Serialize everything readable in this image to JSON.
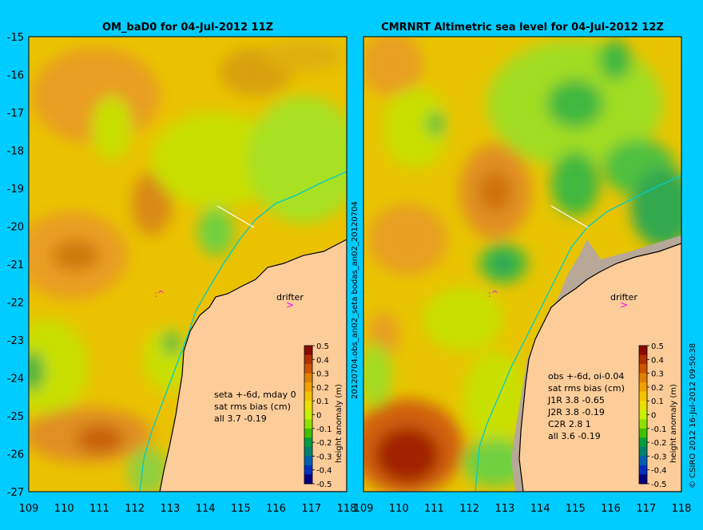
{
  "left_panel": {
    "title": "OM_baD0 for 04-Jul-2012 11Z",
    "notes": [
      "seta +-6d, mday 0",
      "sat rms bias (cm)",
      "all 3.7 -0.19"
    ],
    "drifter_label": "drifter"
  },
  "right_panel": {
    "title": "CMRNRT Altimetric sea level  for 04-Jul-2012 12Z",
    "notes": [
      "obs +-6d, oi-0.04",
      "sat rms bias (cm)",
      "J1R   3.8 -0.65",
      "J2R   3.8 -0.19",
      "C2R   2.8 1",
      "all 3.6 -0.19"
    ],
    "drifter_label": "drifter"
  },
  "axes": {
    "lat_ticks": [
      "-15",
      "-16",
      "-17",
      "-18",
      "-19",
      "-20",
      "-21",
      "-22",
      "-23",
      "-24",
      "-25",
      "-26",
      "-27"
    ],
    "lon_ticks": [
      "109",
      "110",
      "111",
      "112",
      "113",
      "114",
      "115",
      "116",
      "117",
      "118"
    ],
    "lon_range": [
      109,
      118
    ],
    "lat_range": [
      -27,
      -15
    ]
  },
  "colorbar": {
    "label": "height anomaly (m)",
    "ticks": [
      "0.5",
      "0.4",
      "0.3",
      "0.2",
      "0.1",
      "0",
      "-0.1",
      "-0.2",
      "-0.3",
      "-0.4",
      "-0.5"
    ],
    "colors": [
      "#8a0a00",
      "#b03000",
      "#cc5500",
      "#e08000",
      "#f0a000",
      "#f5c400",
      "#e8e000",
      "#c8f000",
      "#90e000",
      "#40c000",
      "#00a040",
      "#008070",
      "#0060b0",
      "#0030c0",
      "#000080"
    ]
  },
  "side_labels": {
    "middle": "20120704.obs_an02_seta        bodas_an02_20120704",
    "right": "© CSIRO 2012   16-Jul-2012 09:50:38"
  },
  "colors": {
    "background": "#00ccff",
    "land": "#fccc99",
    "sea_base": "#e8c800",
    "coast_line": "#000000",
    "shelf_contour": "#00cccc",
    "drifter": "#ff00ff"
  }
}
